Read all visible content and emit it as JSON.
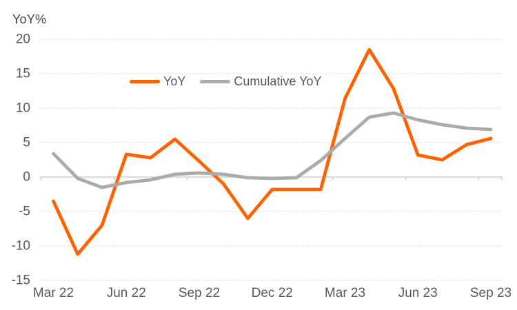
{
  "chart_data": {
    "type": "line",
    "title": "YoY%",
    "x": [
      "Mar 22",
      "Apr 22",
      "May 22",
      "Jun 22",
      "Jul 22",
      "Aug 22",
      "Sep 22",
      "Oct 22",
      "Nov 22",
      "Dec 22",
      "Jan 23",
      "Feb 23",
      "Mar 23",
      "Apr 23",
      "May 23",
      "Jun 23",
      "Jul 23",
      "Aug 23",
      "Sep 23"
    ],
    "x_axis_labels": [
      "Mar 22",
      "Jun 22",
      "Sep 22",
      "Dec 22",
      "Mar 23",
      "Jun 23",
      "Sep 23"
    ],
    "x_label_every_n_months": 3,
    "series": [
      {
        "name": "YoY",
        "color": "#FF6200",
        "values": [
          -3.5,
          -11.2,
          -7.0,
          3.3,
          2.8,
          5.5,
          2.3,
          -1.0,
          -6.0,
          -1.8,
          -1.8,
          -1.8,
          11.4,
          18.5,
          12.8,
          3.2,
          2.5,
          4.7,
          5.6
        ]
      },
      {
        "name": "Cumulative YoY",
        "color": "#ABABAB",
        "values": [
          3.4,
          -0.2,
          -1.5,
          -0.8,
          -0.4,
          0.4,
          0.6,
          0.4,
          -0.1,
          -0.2,
          -0.1,
          2.4,
          5.6,
          8.7,
          9.3,
          8.3,
          7.6,
          7.1,
          6.9
        ]
      }
    ],
    "ylim": [
      -15,
      20
    ],
    "yticks": [
      20,
      15,
      10,
      5,
      0,
      -5,
      -10,
      -15
    ],
    "grid": true,
    "gridline_style": "dotted",
    "legend_position": "top-center"
  },
  "colors": {
    "background": "#ffffff",
    "gridline": "#D0D0D0",
    "axis_line": "#C4C4C4",
    "tick_text": "#595959",
    "title_text": "#404040"
  }
}
